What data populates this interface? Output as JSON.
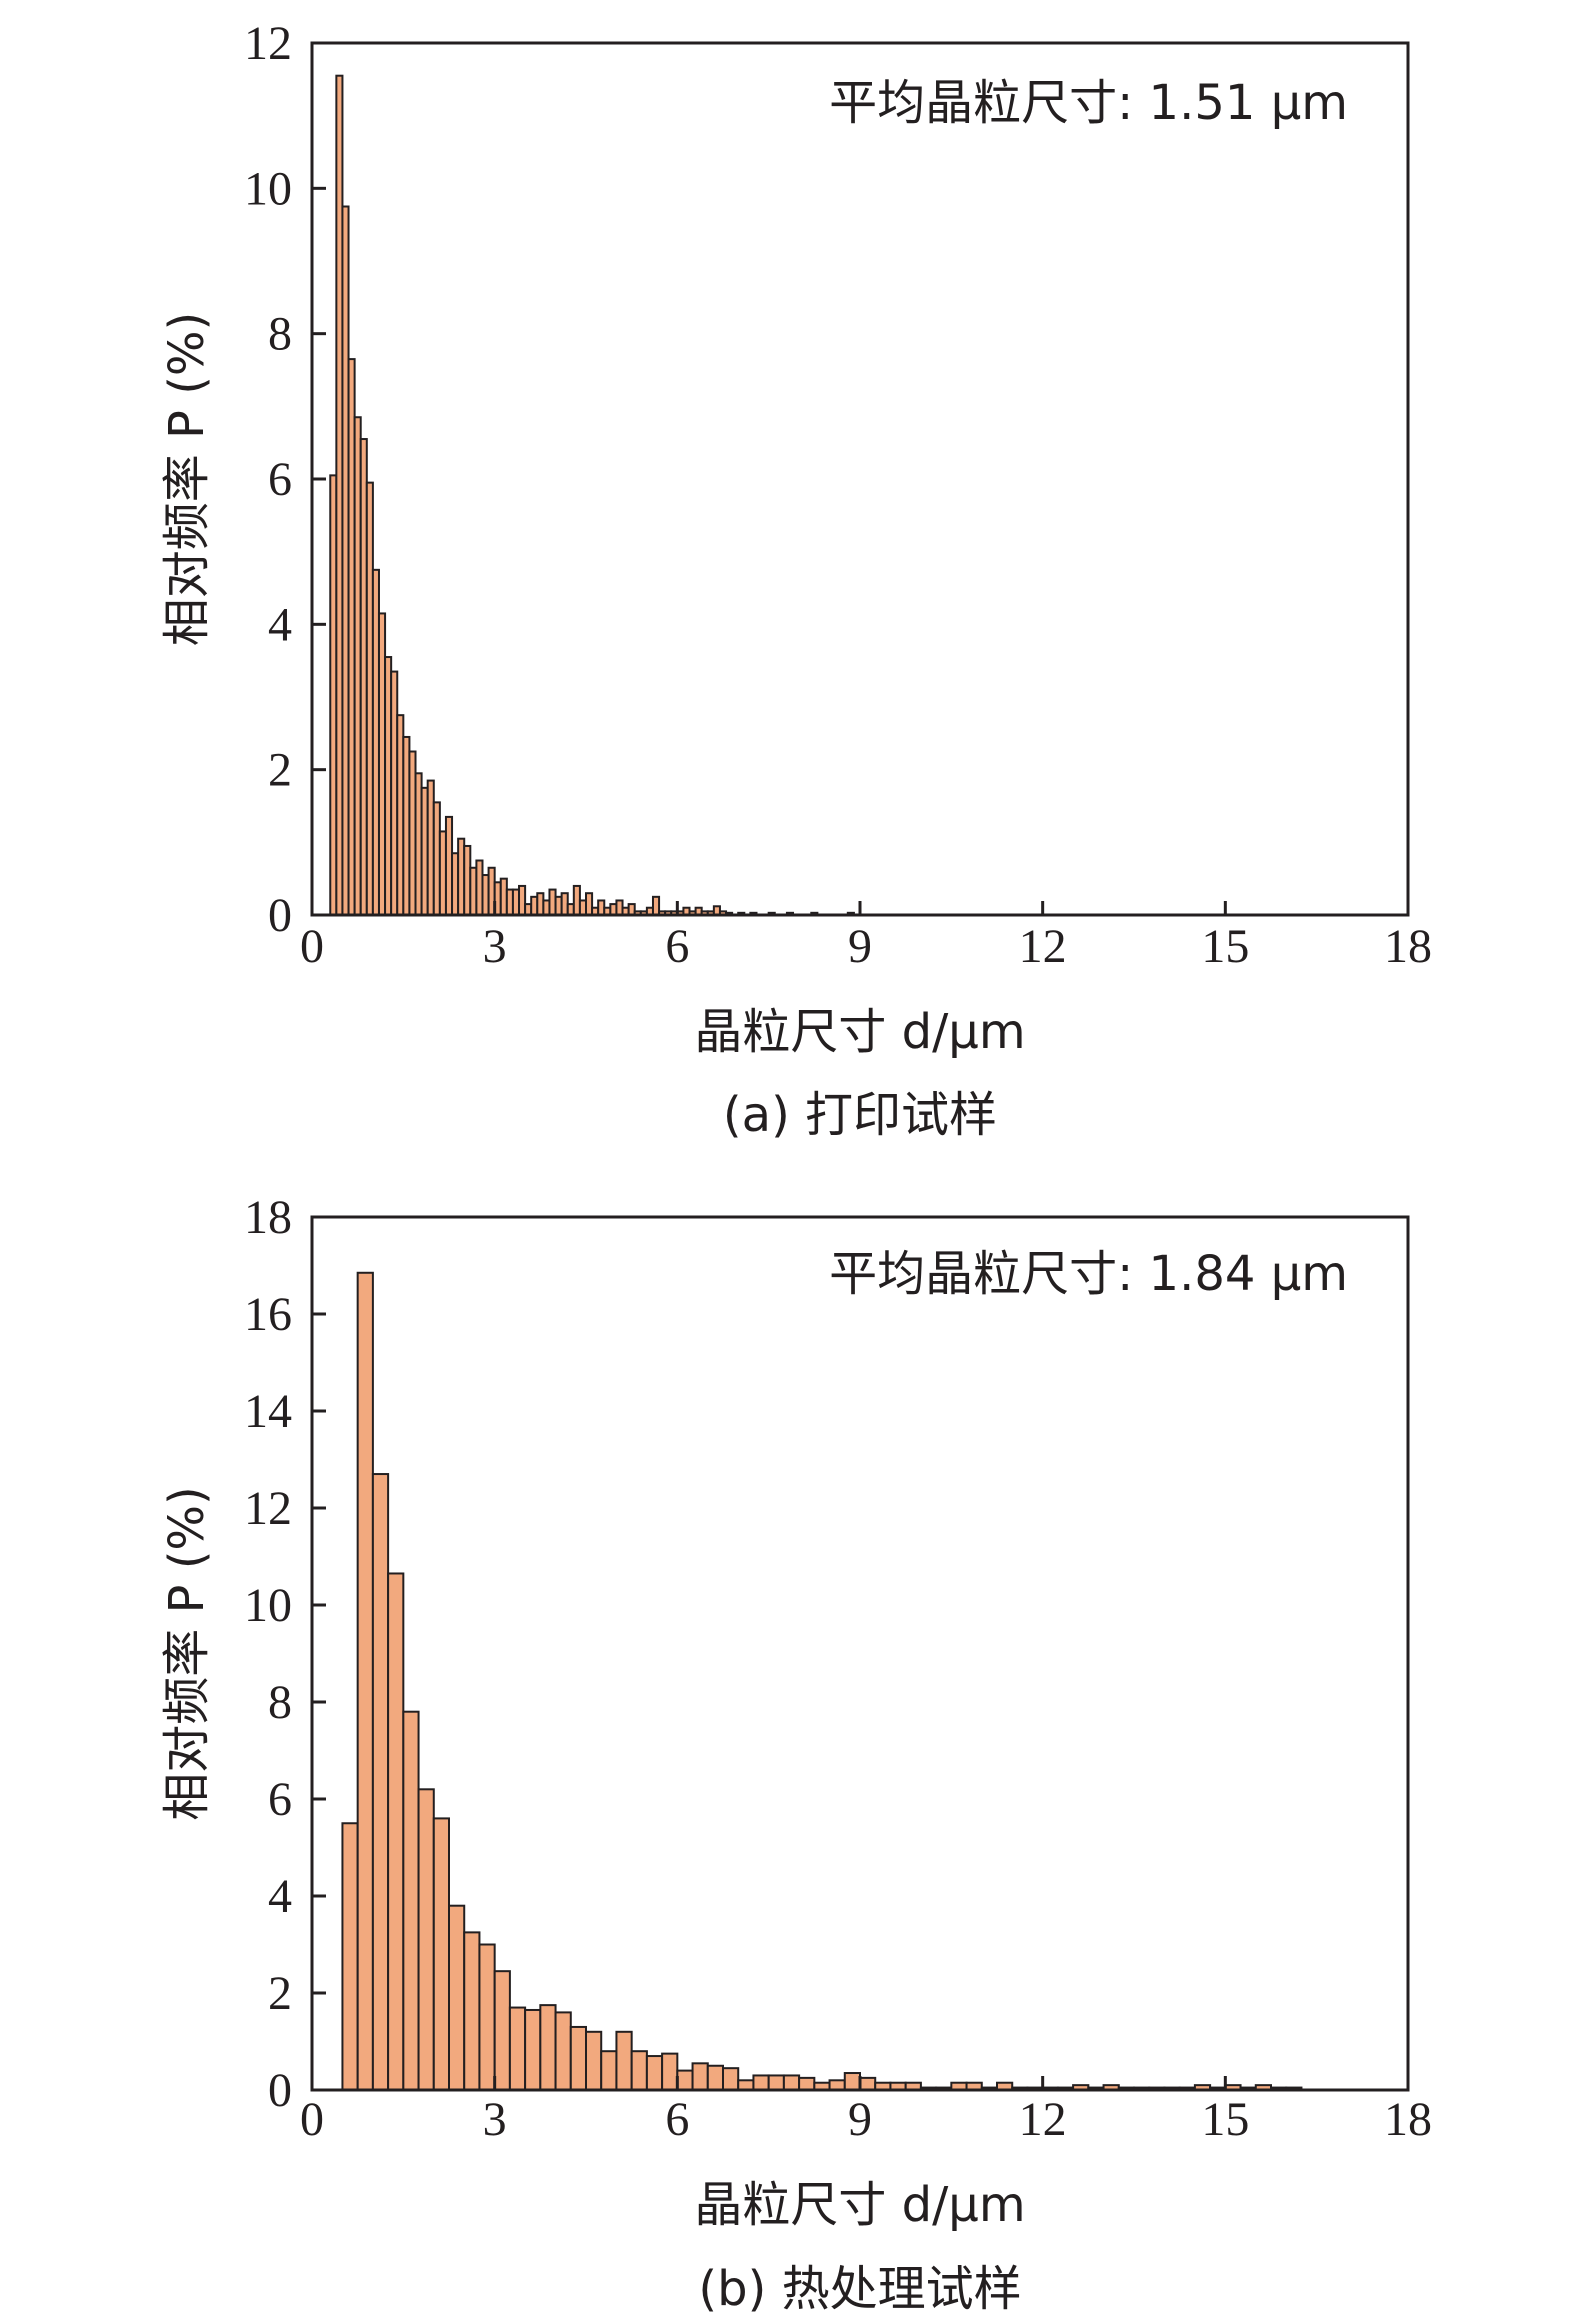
{
  "colors": {
    "bar_fill": "#f2a97e",
    "bar_stroke": "#231f20",
    "axis": "#231f20",
    "text": "#231f20",
    "background": "#ffffff"
  },
  "chart_data": [
    {
      "type": "bar",
      "panel_caption": "(a) 打印试样",
      "annotation": "平均晶粒尺寸: 1.51 μm",
      "xlabel": "晶粒尺寸 d/μm",
      "ylabel": "相对频率 P (%)",
      "xlim": [
        0,
        18
      ],
      "ylim": [
        0,
        12
      ],
      "xticks": [
        0,
        3,
        6,
        9,
        12,
        15,
        18
      ],
      "yticks": [
        0,
        2,
        4,
        6,
        8,
        10,
        12
      ],
      "grid": false,
      "bin_width": 0.1,
      "series": [
        {
          "x": [
            0.35,
            0.45,
            0.55,
            0.65,
            0.75,
            0.85,
            0.95,
            1.05,
            1.15,
            1.25,
            1.35,
            1.45,
            1.55,
            1.65,
            1.75,
            1.85,
            1.95,
            2.05,
            2.15,
            2.25,
            2.35,
            2.45,
            2.55,
            2.65,
            2.75,
            2.85,
            2.95,
            3.05,
            3.15,
            3.25,
            3.35,
            3.45,
            3.55,
            3.65,
            3.75,
            3.85,
            3.95,
            4.05,
            4.15,
            4.25,
            4.35,
            4.45,
            4.55,
            4.65,
            4.75,
            4.85,
            4.95,
            5.05,
            5.15,
            5.25,
            5.35,
            5.45,
            5.55,
            5.65,
            5.75,
            5.85,
            5.95,
            6.05,
            6.15,
            6.25,
            6.35,
            6.45,
            6.55,
            6.65,
            6.75,
            6.85,
            7.05,
            7.25,
            7.55,
            7.85,
            8.25,
            8.85
          ],
          "values": [
            6.05,
            11.55,
            9.75,
            7.65,
            6.85,
            6.55,
            5.95,
            4.75,
            4.15,
            3.55,
            3.35,
            2.75,
            2.45,
            2.25,
            1.95,
            1.75,
            1.85,
            1.55,
            1.15,
            1.35,
            0.85,
            1.05,
            0.95,
            0.65,
            0.75,
            0.55,
            0.65,
            0.45,
            0.5,
            0.35,
            0.35,
            0.4,
            0.15,
            0.25,
            0.3,
            0.2,
            0.35,
            0.25,
            0.3,
            0.15,
            0.4,
            0.2,
            0.3,
            0.1,
            0.2,
            0.1,
            0.15,
            0.2,
            0.1,
            0.15,
            0.05,
            0.05,
            0.1,
            0.25,
            0.05,
            0.05,
            0.05,
            0.05,
            0.1,
            0.05,
            0.1,
            0.05,
            0.05,
            0.12,
            0.05,
            0.03,
            0.03,
            0.03,
            0.03,
            0.03,
            0.03,
            0.03
          ]
        }
      ]
    },
    {
      "type": "bar",
      "panel_caption": "(b) 热处理试样",
      "annotation": "平均晶粒尺寸: 1.84 μm",
      "xlabel": "晶粒尺寸 d/μm",
      "ylabel": "相对频率 P (%)",
      "xlim": [
        0,
        18
      ],
      "ylim": [
        0,
        18
      ],
      "xticks": [
        0,
        3,
        6,
        9,
        12,
        15,
        18
      ],
      "yticks": [
        0,
        2,
        4,
        6,
        8,
        10,
        12,
        14,
        16,
        18
      ],
      "grid": false,
      "bin_width": 0.25,
      "series": [
        {
          "x": [
            0.625,
            0.875,
            1.125,
            1.375,
            1.625,
            1.875,
            2.125,
            2.375,
            2.625,
            2.875,
            3.125,
            3.375,
            3.625,
            3.875,
            4.125,
            4.375,
            4.625,
            4.875,
            5.125,
            5.375,
            5.625,
            5.875,
            6.125,
            6.375,
            6.625,
            6.875,
            7.125,
            7.375,
            7.625,
            7.875,
            8.125,
            8.375,
            8.625,
            8.875,
            9.125,
            9.375,
            9.625,
            9.875,
            10.125,
            10.375,
            10.625,
            10.875,
            11.125,
            11.375,
            11.625,
            11.875,
            12.125,
            12.375,
            12.625,
            12.875,
            13.125,
            13.375,
            13.625,
            13.875,
            14.125,
            14.375,
            14.625,
            14.875,
            15.125,
            15.375,
            15.625,
            15.875,
            16.125
          ],
          "values": [
            5.5,
            16.85,
            12.7,
            10.65,
            7.8,
            6.2,
            5.6,
            3.8,
            3.25,
            3.0,
            2.45,
            1.7,
            1.65,
            1.75,
            1.6,
            1.3,
            1.2,
            0.8,
            1.2,
            0.8,
            0.7,
            0.75,
            0.4,
            0.55,
            0.5,
            0.45,
            0.2,
            0.3,
            0.3,
            0.3,
            0.25,
            0.15,
            0.2,
            0.35,
            0.25,
            0.15,
            0.15,
            0.15,
            0.05,
            0.05,
            0.15,
            0.15,
            0.05,
            0.15,
            0.05,
            0.05,
            0.05,
            0.05,
            0.1,
            0.05,
            0.1,
            0.05,
            0.05,
            0.05,
            0.05,
            0.05,
            0.1,
            0.05,
            0.1,
            0.05,
            0.1,
            0.05,
            0.05
          ]
        }
      ]
    }
  ]
}
